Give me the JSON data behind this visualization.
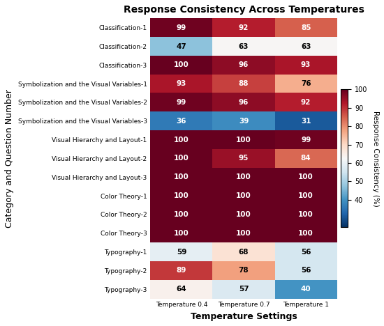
{
  "title": "Response Consistency Across Temperatures",
  "xlabel": "Temperature Settings",
  "ylabel": "Category and Question Number",
  "colorbar_label": "Response Consistency (%)",
  "columns": [
    "Temperature 0.4",
    "Temperature 0.7",
    "Temperature 1"
  ],
  "rows": [
    "Classification-1",
    "Classification-2",
    "Classification-3",
    "Symbolization and the Visual Variables-1",
    "Symbolization and the Visual Variables-2",
    "Symbolization and the Visual Variables-3",
    "Visual Hierarchy and Layout-1",
    "Visual Hierarchy and Layout-2",
    "Visual Hierarchy and Layout-3",
    "Color Theory-1",
    "Color Theory-2",
    "Color Theory-3",
    "Typography-1",
    "Typography-2",
    "Typography-3"
  ],
  "values": [
    [
      99,
      92,
      85
    ],
    [
      47,
      63,
      63
    ],
    [
      100,
      96,
      93
    ],
    [
      93,
      88,
      76
    ],
    [
      99,
      96,
      92
    ],
    [
      36,
      39,
      31
    ],
    [
      100,
      100,
      99
    ],
    [
      100,
      95,
      84
    ],
    [
      100,
      100,
      100
    ],
    [
      100,
      100,
      100
    ],
    [
      100,
      100,
      100
    ],
    [
      100,
      100,
      100
    ],
    [
      59,
      68,
      56
    ],
    [
      89,
      78,
      56
    ],
    [
      64,
      57,
      40
    ]
  ],
  "vmin": 25,
  "vmax": 100,
  "cmap": "RdBu_r",
  "colorbar_ticks": [
    40,
    50,
    60,
    70,
    80,
    90,
    100
  ],
  "figsize": [
    5.5,
    4.68
  ],
  "dpi": 100,
  "title_fontsize": 10,
  "axis_label_fontsize": 9,
  "tick_fontsize": 6.5,
  "annot_fontsize": 7.5,
  "cbar_label_fontsize": 7.5,
  "cbar_tick_fontsize": 7
}
